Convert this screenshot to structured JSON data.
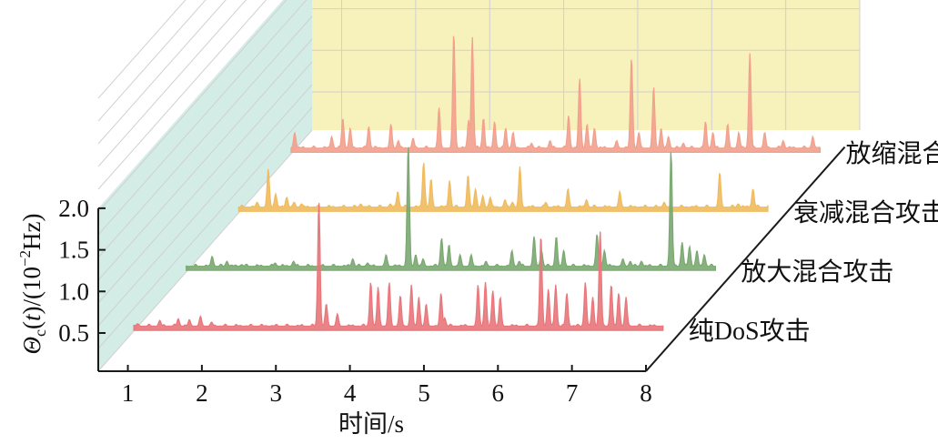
{
  "chart_data": {
    "type": "area",
    "projection": "3d-waterfall",
    "xlabel": "时间/s",
    "ylabel": "Θc(t)/(10⁻²Hz)",
    "ylabel_parts": {
      "symbol": "Θ",
      "sub": "c",
      "arg_open": "(",
      "arg": "t",
      "arg_close": ")",
      "unit_open": "/(10",
      "exp": "−2",
      "unit_close": "Hz)"
    },
    "x_ticks": [
      "1",
      "2",
      "3",
      "4",
      "5",
      "6",
      "7",
      "8"
    ],
    "y_ticks": [
      "0.5",
      "1.0",
      "1.5",
      "2.0"
    ],
    "xlim": [
      0.6,
      8
    ],
    "ylim": [
      0.3,
      2.0
    ],
    "grid": true,
    "series": [
      {
        "name": "纯DoS攻击",
        "color": "#e8767a",
        "baseline": 0.35,
        "peaks": [
          [
            0.9,
            0.38
          ],
          [
            1.2,
            0.42
          ],
          [
            1.45,
            0.44
          ],
          [
            1.6,
            0.43
          ],
          [
            1.75,
            0.47
          ],
          [
            1.9,
            0.4
          ],
          [
            3.35,
            1.85
          ],
          [
            3.45,
            0.62
          ],
          [
            3.6,
            0.5
          ],
          [
            4.05,
            0.88
          ],
          [
            4.15,
            0.82
          ],
          [
            4.3,
            0.88
          ],
          [
            4.45,
            0.72
          ],
          [
            4.6,
            0.85
          ],
          [
            4.7,
            0.7
          ],
          [
            4.8,
            0.62
          ],
          [
            5.0,
            0.75
          ],
          [
            5.05,
            0.45
          ],
          [
            5.5,
            0.85
          ],
          [
            5.6,
            0.88
          ],
          [
            5.7,
            0.78
          ],
          [
            5.8,
            0.7
          ],
          [
            6.35,
            1.45
          ],
          [
            6.45,
            0.8
          ],
          [
            6.55,
            0.85
          ],
          [
            6.7,
            0.75
          ],
          [
            6.95,
            0.88
          ],
          [
            7.05,
            0.7
          ],
          [
            7.15,
            1.5
          ],
          [
            7.3,
            0.85
          ],
          [
            7.4,
            0.75
          ],
          [
            7.5,
            0.7
          ]
        ]
      },
      {
        "name": "放大混合攻击",
        "color": "#7aa870",
        "baseline": 0.36,
        "peaks": [
          [
            1.2,
            0.48
          ],
          [
            1.4,
            0.42
          ],
          [
            1.6,
            0.38
          ],
          [
            2.05,
            0.4
          ],
          [
            2.3,
            0.42
          ],
          [
            3.1,
            0.45
          ],
          [
            3.3,
            0.4
          ],
          [
            3.55,
            0.5
          ],
          [
            3.85,
            1.82
          ],
          [
            3.95,
            0.5
          ],
          [
            4.05,
            0.45
          ],
          [
            4.3,
            0.7
          ],
          [
            4.4,
            0.62
          ],
          [
            4.55,
            0.5
          ],
          [
            4.7,
            0.5
          ],
          [
            4.9,
            0.42
          ],
          [
            5.25,
            0.55
          ],
          [
            5.35,
            0.42
          ],
          [
            5.55,
            0.72
          ],
          [
            5.65,
            0.55
          ],
          [
            5.85,
            0.72
          ],
          [
            5.95,
            0.55
          ],
          [
            6.4,
            0.75
          ],
          [
            6.5,
            0.55
          ],
          [
            6.75,
            0.45
          ],
          [
            6.85,
            0.42
          ],
          [
            7.0,
            0.42
          ],
          [
            7.4,
            1.75
          ],
          [
            7.55,
            0.65
          ],
          [
            7.65,
            0.6
          ],
          [
            7.75,
            0.55
          ],
          [
            7.85,
            0.5
          ]
        ]
      },
      {
        "name": "衰减混合攻击",
        "color": "#f0bb5e",
        "baseline": 0.36,
        "peaks": [
          [
            1.1,
            0.42
          ],
          [
            1.25,
            0.82
          ],
          [
            1.35,
            0.52
          ],
          [
            1.5,
            0.48
          ],
          [
            1.6,
            0.42
          ],
          [
            1.7,
            0.4
          ],
          [
            2.5,
            0.4
          ],
          [
            2.9,
            0.4
          ],
          [
            3.0,
            0.55
          ],
          [
            3.35,
            0.9
          ],
          [
            3.45,
            0.7
          ],
          [
            3.7,
            0.68
          ],
          [
            3.95,
            0.75
          ],
          [
            4.05,
            0.58
          ],
          [
            4.15,
            0.5
          ],
          [
            4.25,
            0.48
          ],
          [
            4.45,
            0.45
          ],
          [
            4.55,
            0.42
          ],
          [
            4.65,
            0.85
          ],
          [
            5.0,
            0.42
          ],
          [
            5.3,
            0.58
          ],
          [
            5.55,
            0.45
          ],
          [
            6.0,
            0.55
          ],
          [
            6.6,
            0.42
          ],
          [
            7.35,
            0.78
          ],
          [
            7.6,
            0.4
          ],
          [
            7.8,
            0.58
          ]
        ]
      },
      {
        "name": "放缩混合攻击",
        "color": "#f2a08c",
        "baseline": 0.36,
        "peaks": [
          [
            0.9,
            0.55
          ],
          [
            1.4,
            0.5
          ],
          [
            1.55,
            0.72
          ],
          [
            1.65,
            0.6
          ],
          [
            1.9,
            0.62
          ],
          [
            2.2,
            0.65
          ],
          [
            2.3,
            0.45
          ],
          [
            2.5,
            0.48
          ],
          [
            2.85,
            0.85
          ],
          [
            3.05,
            1.75
          ],
          [
            3.25,
            0.7
          ],
          [
            3.3,
            1.7
          ],
          [
            3.45,
            0.72
          ],
          [
            3.6,
            0.68
          ],
          [
            3.75,
            0.6
          ],
          [
            3.85,
            0.55
          ],
          [
            4.1,
            0.42
          ],
          [
            4.35,
            0.45
          ],
          [
            4.6,
            0.75
          ],
          [
            4.75,
            1.2
          ],
          [
            4.85,
            0.65
          ],
          [
            4.95,
            0.6
          ],
          [
            5.25,
            0.45
          ],
          [
            5.45,
            1.45
          ],
          [
            5.55,
            0.55
          ],
          [
            5.75,
            1.1
          ],
          [
            5.85,
            0.6
          ],
          [
            5.95,
            0.5
          ],
          [
            6.15,
            0.42
          ],
          [
            6.45,
            0.68
          ],
          [
            6.55,
            0.55
          ],
          [
            6.75,
            0.65
          ],
          [
            6.9,
            0.55
          ],
          [
            7.05,
            1.5
          ],
          [
            7.25,
            0.55
          ],
          [
            7.5,
            0.45
          ],
          [
            7.9,
            0.5
          ]
        ]
      }
    ]
  },
  "colors": {
    "left_wall": "#d3ece6",
    "back_wall": "#f7f1bc",
    "grid_line": "#d0d0d0",
    "axis": "#1a1a1a"
  }
}
